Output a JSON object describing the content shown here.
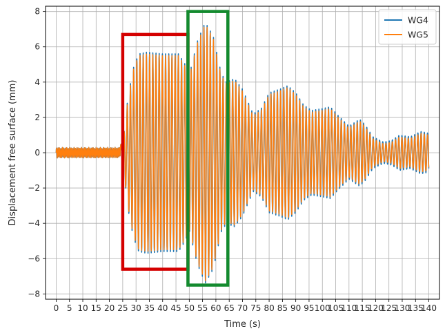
{
  "chart_data": {
    "type": "line",
    "title": "",
    "xlabel": "Time (s)",
    "ylabel": "Displacement free surface (mm)",
    "xlim": [
      -4,
      144
    ],
    "ylim": [
      -8.3,
      8.3
    ],
    "x_ticks": [
      0,
      5,
      10,
      15,
      20,
      25,
      30,
      35,
      40,
      45,
      50,
      55,
      60,
      65,
      70,
      75,
      80,
      85,
      90,
      95,
      100,
      105,
      110,
      115,
      120,
      125,
      130,
      135,
      140
    ],
    "y_ticks": [
      -8,
      -6,
      -4,
      -2,
      0,
      2,
      4,
      6,
      8
    ],
    "grid": true,
    "legend_position": "top-right",
    "signal_description": "oscillating free-surface displacement; envelope listed as [time_s, amplitude_mm]",
    "wave_period_s": 1.2,
    "series": [
      {
        "name": "WG4",
        "color": "#1f77b4",
        "envelope": [
          [
            0,
            0.3
          ],
          [
            24,
            0.3
          ],
          [
            25.5,
            1.2
          ],
          [
            27,
            3.2
          ],
          [
            29,
            4.8
          ],
          [
            31,
            5.6
          ],
          [
            34,
            5.7
          ],
          [
            40,
            5.6
          ],
          [
            46,
            5.6
          ],
          [
            48.5,
            5.0
          ],
          [
            50,
            4.4
          ],
          [
            53,
            6.3
          ],
          [
            56,
            7.4
          ],
          [
            59,
            6.6
          ],
          [
            62,
            4.5
          ],
          [
            64,
            4.0
          ],
          [
            67,
            4.2
          ],
          [
            70,
            3.6
          ],
          [
            74,
            2.2
          ],
          [
            77,
            2.5
          ],
          [
            80,
            3.4
          ],
          [
            84,
            3.6
          ],
          [
            87,
            3.8
          ],
          [
            90,
            3.4
          ],
          [
            93,
            2.7
          ],
          [
            96,
            2.4
          ],
          [
            100,
            2.5
          ],
          [
            103,
            2.6
          ],
          [
            106,
            2.1
          ],
          [
            110,
            1.5
          ],
          [
            114,
            1.9
          ],
          [
            116,
            1.6
          ],
          [
            119,
            0.9
          ],
          [
            123,
            0.6
          ],
          [
            126,
            0.7
          ],
          [
            129,
            1.0
          ],
          [
            133,
            0.9
          ],
          [
            137,
            1.2
          ],
          [
            140,
            1.1
          ]
        ]
      },
      {
        "name": "WG5",
        "color": "#ff7f0e",
        "envelope": [
          [
            0,
            0.3
          ],
          [
            24,
            0.3
          ],
          [
            25.5,
            1.2
          ],
          [
            27,
            3.1
          ],
          [
            29,
            4.7
          ],
          [
            31,
            5.5
          ],
          [
            34,
            5.6
          ],
          [
            40,
            5.5
          ],
          [
            46,
            5.5
          ],
          [
            48.5,
            4.9
          ],
          [
            50,
            4.3
          ],
          [
            53,
            6.2
          ],
          [
            56,
            7.3
          ],
          [
            59,
            6.5
          ],
          [
            62,
            4.4
          ],
          [
            64,
            3.9
          ],
          [
            67,
            4.1
          ],
          [
            70,
            3.5
          ],
          [
            74,
            2.1
          ],
          [
            77,
            2.4
          ],
          [
            80,
            3.3
          ],
          [
            84,
            3.5
          ],
          [
            87,
            3.7
          ],
          [
            90,
            3.3
          ],
          [
            93,
            2.6
          ],
          [
            96,
            2.3
          ],
          [
            100,
            2.4
          ],
          [
            103,
            2.5
          ],
          [
            106,
            2.0
          ],
          [
            110,
            1.4
          ],
          [
            114,
            1.8
          ],
          [
            116,
            1.5
          ],
          [
            119,
            0.8
          ],
          [
            123,
            0.5
          ],
          [
            126,
            0.6
          ],
          [
            129,
            0.9
          ],
          [
            133,
            0.8
          ],
          [
            137,
            1.1
          ],
          [
            140,
            1.0
          ]
        ]
      }
    ],
    "annotations": [
      {
        "kind": "box",
        "color": "#d40000",
        "x_range": [
          25,
          49.5
        ],
        "y_range": [
          -6.6,
          6.7
        ]
      },
      {
        "kind": "box",
        "color": "#138a2e",
        "x_range": [
          49.5,
          64.5
        ],
        "y_range": [
          -7.5,
          8.0
        ]
      }
    ]
  }
}
